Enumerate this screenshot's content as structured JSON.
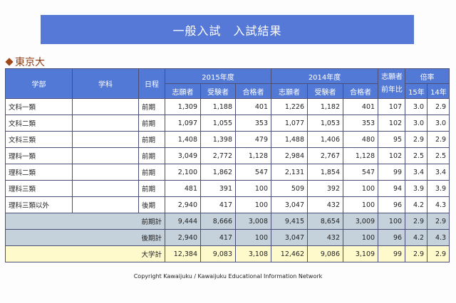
{
  "banner": {
    "title": "一般入試　入試結果"
  },
  "section": {
    "icon": "diamond-icon",
    "title": "東京大"
  },
  "table": {
    "headers": {
      "faculty": "学部",
      "department": "学科",
      "schedule": "日程",
      "year2015": "2015年度",
      "year2014": "2014年度",
      "applicants": "志願者",
      "examinees": "受験者",
      "passed": "合格者",
      "yoy_top": "志願者",
      "yoy_bottom": "前年比",
      "ratio": "倍率",
      "ratio15": "15年",
      "ratio14": "14年"
    },
    "rows": [
      {
        "faculty": "文科一類",
        "department": "",
        "schedule": "前期",
        "a15": "1,309",
        "e15": "1,188",
        "p15": "401",
        "a14": "1,226",
        "e14": "1,182",
        "p14": "401",
        "yoy": "107",
        "r15": "3.0",
        "r14": "2.9"
      },
      {
        "faculty": "文科二類",
        "department": "",
        "schedule": "前期",
        "a15": "1,097",
        "e15": "1,055",
        "p15": "353",
        "a14": "1,077",
        "e14": "1,053",
        "p14": "353",
        "yoy": "102",
        "r15": "3.0",
        "r14": "3.0"
      },
      {
        "faculty": "文科三類",
        "department": "",
        "schedule": "前期",
        "a15": "1,408",
        "e15": "1,398",
        "p15": "479",
        "a14": "1,488",
        "e14": "1,406",
        "p14": "480",
        "yoy": "95",
        "r15": "2.9",
        "r14": "2.9"
      },
      {
        "faculty": "理科一類",
        "department": "",
        "schedule": "前期",
        "a15": "3,049",
        "e15": "2,772",
        "p15": "1,128",
        "a14": "2,984",
        "e14": "2,767",
        "p14": "1,128",
        "yoy": "102",
        "r15": "2.5",
        "r14": "2.5"
      },
      {
        "faculty": "理科二類",
        "department": "",
        "schedule": "前期",
        "a15": "2,100",
        "e15": "1,862",
        "p15": "547",
        "a14": "2,131",
        "e14": "1,854",
        "p14": "547",
        "yoy": "99",
        "r15": "3.4",
        "r14": "3.4"
      },
      {
        "faculty": "理科三類",
        "department": "",
        "schedule": "前期",
        "a15": "481",
        "e15": "391",
        "p15": "100",
        "a14": "509",
        "e14": "392",
        "p14": "100",
        "yoy": "94",
        "r15": "3.9",
        "r14": "3.9"
      },
      {
        "faculty": "理科三類以外",
        "department": "",
        "schedule": "後期",
        "a15": "2,940",
        "e15": "417",
        "p15": "100",
        "a14": "3,047",
        "e14": "432",
        "p14": "100",
        "yoy": "96",
        "r15": "4.2",
        "r14": "4.3"
      }
    ],
    "subtotals": [
      {
        "label": "前期計",
        "a15": "9,444",
        "e15": "8,666",
        "p15": "3,008",
        "a14": "9,415",
        "e14": "8,654",
        "p14": "3,009",
        "yoy": "100",
        "r15": "2.9",
        "r14": "2.9"
      },
      {
        "label": "後期計",
        "a15": "2,940",
        "e15": "417",
        "p15": "100",
        "a14": "3,047",
        "e14": "432",
        "p14": "100",
        "yoy": "96",
        "r15": "4.2",
        "r14": "4.3"
      }
    ],
    "total": {
      "label": "大学計",
      "a15": "12,384",
      "e15": "9,083",
      "p15": "3,108",
      "a14": "12,462",
      "e14": "9,086",
      "p14": "3,109",
      "yoy": "99",
      "r15": "2.9",
      "r14": "2.9"
    }
  },
  "footer": {
    "copyright": "Copyright Kawaijuku / Kawaijuku Educational Information Network"
  },
  "colors": {
    "banner": "#5679d8",
    "header": "#5279d6",
    "subtotal_bg": "#c5d2dc",
    "total_bg": "#fffacc",
    "section_title": "#8b3a12"
  }
}
